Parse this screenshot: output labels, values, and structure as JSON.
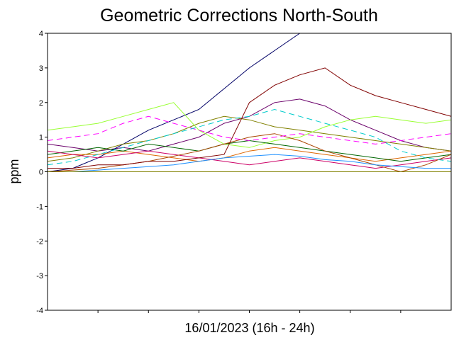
{
  "chart_data": {
    "type": "line",
    "title": "Geometric Corrections North-South",
    "xlabel": "16/01/2023 (16h - 24h)",
    "ylabel": "ppm",
    "ylim": [
      -4,
      4
    ],
    "yticks": [
      -4,
      -3,
      -2,
      -1,
      0,
      1,
      2,
      3,
      4
    ],
    "x_range_hours": [
      16,
      24
    ],
    "x_tick_hours": [
      17,
      18,
      19,
      20,
      21,
      22,
      23
    ],
    "zero_line": true,
    "grid": false,
    "legend": "none",
    "x": [
      16.0,
      16.5,
      17.0,
      17.5,
      18.0,
      18.5,
      19.0,
      19.5,
      20.0,
      20.5,
      21.0,
      21.5,
      22.0,
      22.5,
      23.0,
      23.5,
      24.0
    ],
    "series": [
      {
        "color": "#6a006a",
        "dash": "solid",
        "values": [
          0.8,
          0.7,
          0.6,
          0.7,
          0.6,
          0.8,
          1.0,
          1.4,
          1.6,
          2.0,
          2.1,
          1.9,
          1.5,
          1.2,
          0.9,
          0.7,
          0.6
        ]
      },
      {
        "color": "#000066",
        "dash": "solid",
        "values": [
          0.0,
          0.1,
          0.4,
          0.8,
          1.2,
          1.5,
          1.8,
          2.4,
          3.0,
          3.5,
          4.0,
          4.0,
          4.0,
          4.0,
          4.0,
          4.0,
          4.0
        ]
      },
      {
        "color": "#808000",
        "dash": "solid",
        "values": [
          0.3,
          0.4,
          0.6,
          0.8,
          0.9,
          1.1,
          1.4,
          1.6,
          1.5,
          1.3,
          1.2,
          1.1,
          1.0,
          0.9,
          0.8,
          0.7,
          0.6
        ]
      },
      {
        "color": "#99ff33",
        "dash": "solid",
        "values": [
          1.2,
          1.3,
          1.4,
          1.6,
          1.8,
          2.0,
          1.2,
          0.8,
          0.7,
          0.9,
          1.0,
          1.3,
          1.5,
          1.6,
          1.5,
          1.4,
          1.5
        ]
      },
      {
        "color": "#dd6600",
        "dash": "solid",
        "values": [
          0.4,
          0.5,
          0.5,
          0.6,
          0.5,
          0.4,
          0.3,
          0.4,
          0.6,
          0.7,
          0.6,
          0.5,
          0.4,
          0.3,
          0.4,
          0.5,
          0.6
        ]
      },
      {
        "color": "#006600",
        "dash": "solid",
        "values": [
          0.5,
          0.6,
          0.7,
          0.6,
          0.8,
          0.7,
          0.6,
          0.8,
          0.9,
          0.8,
          0.7,
          0.6,
          0.5,
          0.4,
          0.3,
          0.4,
          0.5
        ]
      },
      {
        "color": "#cc0066",
        "dash": "solid",
        "values": [
          0.6,
          0.5,
          0.4,
          0.5,
          0.6,
          0.5,
          0.4,
          0.3,
          0.2,
          0.3,
          0.4,
          0.3,
          0.2,
          0.1,
          0.2,
          0.3,
          0.4
        ]
      },
      {
        "color": "#aa4400",
        "dash": "solid",
        "values": [
          0.0,
          0.05,
          0.1,
          0.2,
          0.3,
          0.45,
          0.6,
          0.8,
          1.0,
          1.1,
          0.9,
          0.6,
          0.4,
          0.2,
          0.0,
          0.2,
          0.5
        ]
      },
      {
        "color": "#1e90ff",
        "dash": "solid",
        "values": [
          0.0,
          0.0,
          0.05,
          0.1,
          0.15,
          0.2,
          0.3,
          0.4,
          0.45,
          0.5,
          0.45,
          0.35,
          0.3,
          0.2,
          0.15,
          0.1,
          0.1
        ]
      },
      {
        "color": "#ff00ff",
        "dash": "dashed",
        "values": [
          0.9,
          1.0,
          1.1,
          1.4,
          1.6,
          1.4,
          1.2,
          1.0,
          0.9,
          1.0,
          1.1,
          1.0,
          0.9,
          0.8,
          0.9,
          1.0,
          1.1
        ]
      },
      {
        "color": "#00cccc",
        "dash": "dashed",
        "values": [
          0.2,
          0.3,
          0.5,
          0.7,
          0.9,
          1.1,
          1.3,
          1.5,
          1.6,
          1.8,
          1.6,
          1.4,
          1.2,
          1.0,
          0.6,
          0.4,
          0.3
        ]
      },
      {
        "color": "#800000",
        "dash": "solid",
        "values": [
          0.1,
          0.1,
          0.2,
          0.2,
          0.3,
          0.3,
          0.4,
          0.5,
          2.0,
          2.5,
          2.8,
          3.0,
          2.5,
          2.2,
          2.0,
          1.8,
          1.6
        ]
      }
    ]
  }
}
